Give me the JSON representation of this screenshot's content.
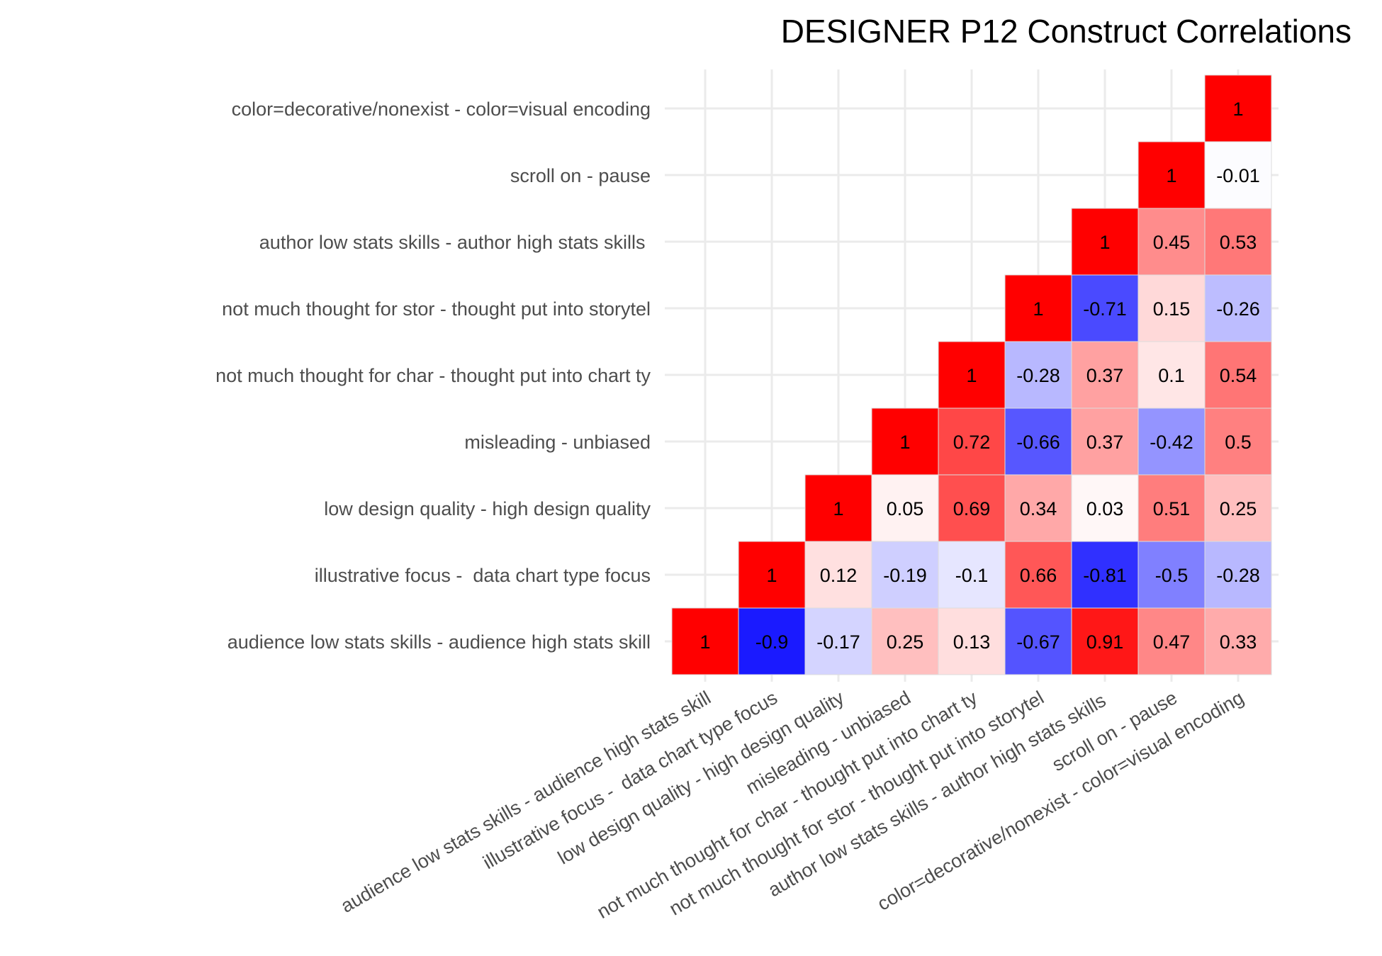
{
  "chart_data": {
    "type": "heatmap",
    "title": "DESIGNER P12 Construct Correlations",
    "x_labels": [
      "audience low stats skills - audience high stats skill",
      "illustrative focus -  data chart type focus",
      "low design quality - high design quality",
      "misleading - unbiased",
      "not much thought for char - thought put into chart ty",
      "not much thought for stor - thought put into storytel",
      "author low stats skills - author high stats skills ",
      "scroll on - pause",
      "color=decorative/nonexist - color=visual encoding"
    ],
    "y_labels": [
      "audience low stats skills - audience high stats skill",
      "illustrative focus -  data chart type focus",
      "low design quality - high design quality",
      "misleading - unbiased",
      "not much thought for char - thought put into chart ty",
      "not much thought for stor - thought put into storytel",
      "author low stats skills - author high stats skills ",
      "scroll on - pause",
      "color=decorative/nonexist - color=visual encoding"
    ],
    "values": [
      [
        1,
        -0.9,
        -0.17,
        0.25,
        0.13,
        -0.67,
        0.91,
        0.47,
        0.33
      ],
      [
        null,
        1,
        0.12,
        -0.19,
        -0.1,
        0.66,
        -0.81,
        -0.5,
        -0.28
      ],
      [
        null,
        null,
        1,
        0.05,
        0.69,
        0.34,
        0.03,
        0.51,
        0.25
      ],
      [
        null,
        null,
        null,
        1,
        0.72,
        -0.66,
        0.37,
        -0.42,
        0.5
      ],
      [
        null,
        null,
        null,
        null,
        1,
        -0.28,
        0.37,
        0.1,
        0.54
      ],
      [
        null,
        null,
        null,
        null,
        null,
        1,
        -0.71,
        0.15,
        -0.26
      ],
      [
        null,
        null,
        null,
        null,
        null,
        null,
        1,
        0.45,
        0.53
      ],
      [
        null,
        null,
        null,
        null,
        null,
        null,
        null,
        1,
        -0.01
      ],
      [
        null,
        null,
        null,
        null,
        null,
        null,
        null,
        null,
        1
      ]
    ],
    "value_range": [
      -1,
      1
    ],
    "color_scale": {
      "low": "#0000ff",
      "mid": "#ffffff",
      "high": "#ff0000"
    },
    "grid": true,
    "legend": "none"
  }
}
